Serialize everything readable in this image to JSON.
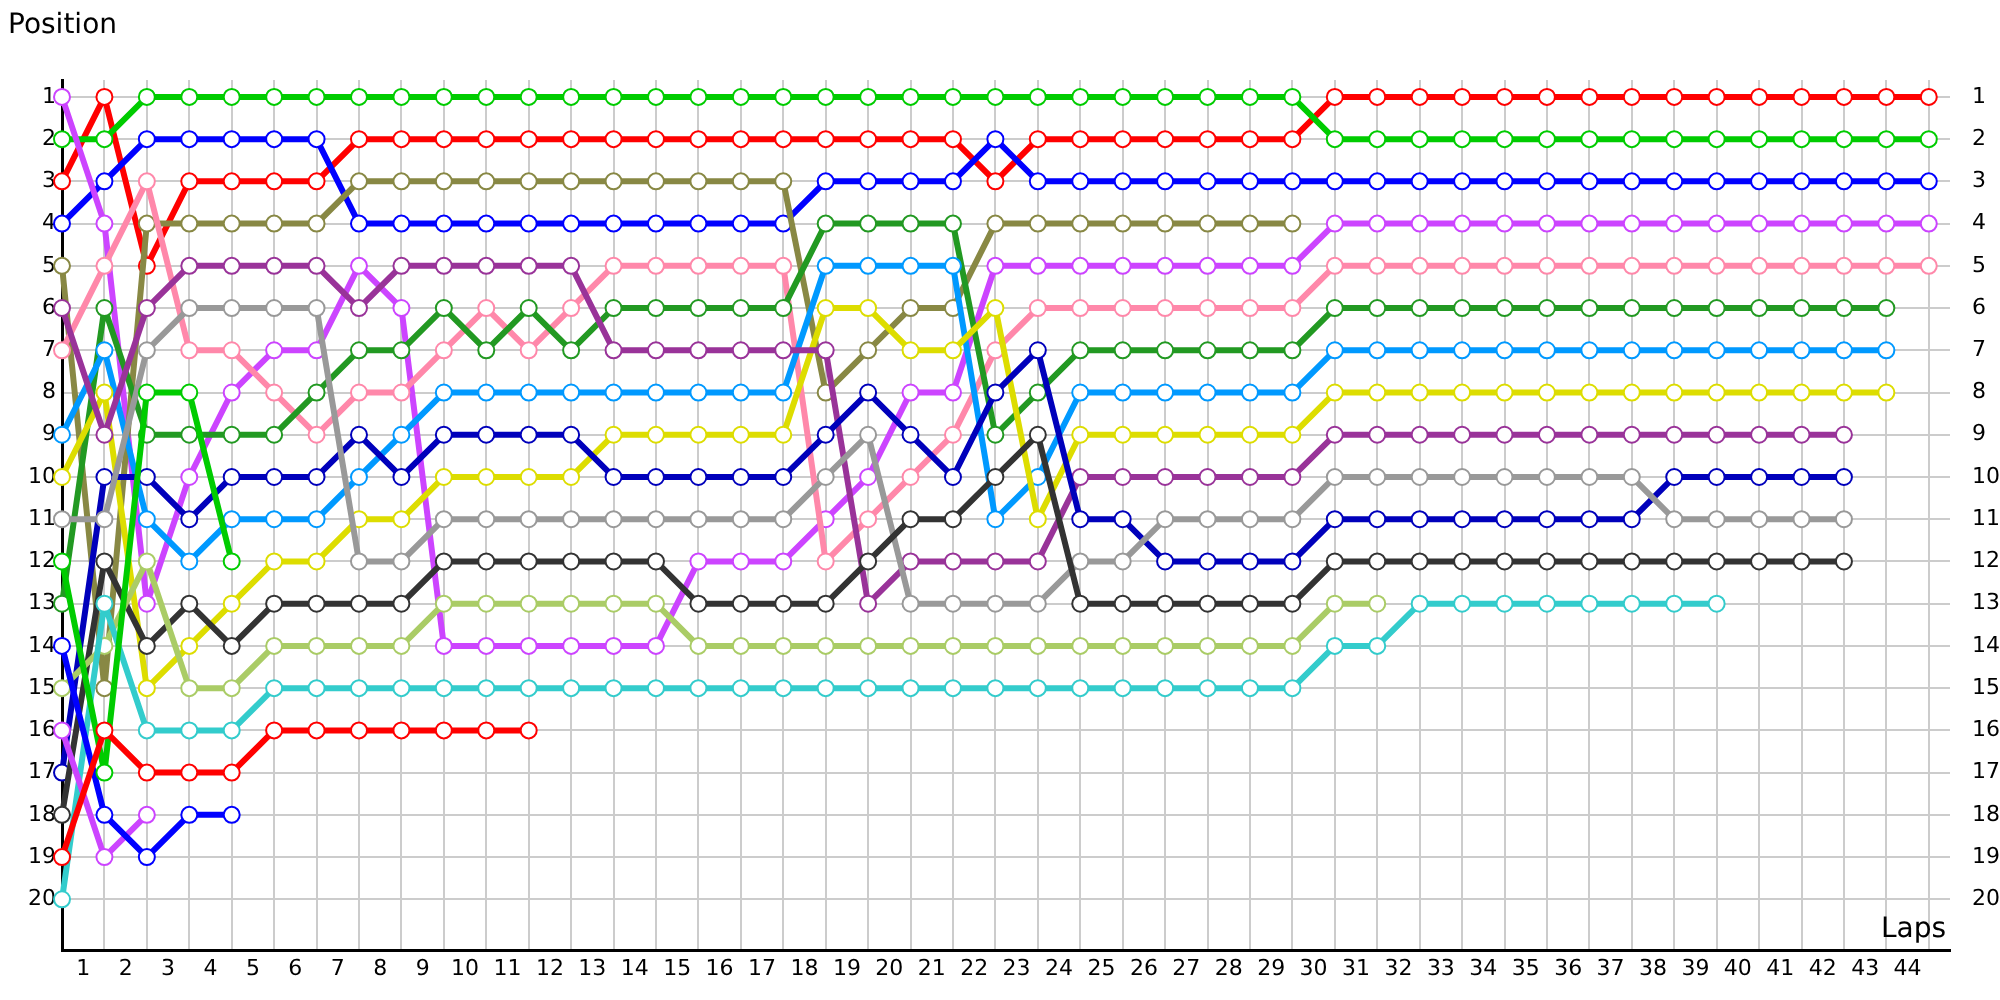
{
  "chart_data": {
    "type": "line",
    "xlabel": "Laps",
    "ylabel": "Position",
    "x": [
      0,
      1,
      2,
      3,
      4,
      5,
      6,
      7,
      8,
      9,
      10,
      11,
      12,
      13,
      14,
      15,
      16,
      17,
      18,
      19,
      20,
      21,
      22,
      23,
      24,
      25,
      26,
      27,
      28,
      29,
      30,
      31,
      32,
      33,
      34,
      35,
      36,
      37,
      38,
      39,
      40,
      41,
      42,
      43,
      44
    ],
    "series": [
      {
        "color": "#ff0000",
        "values": [
          19,
          16,
          17,
          17,
          17,
          16,
          16,
          16,
          16,
          16,
          16,
          16,
          null,
          null,
          null,
          null,
          null,
          null,
          null,
          null,
          null,
          null,
          null,
          null,
          null,
          null,
          null,
          null,
          null,
          null,
          null,
          null,
          null,
          null,
          null,
          null,
          null,
          null,
          null,
          null,
          null,
          null,
          null,
          null,
          null
        ]
      },
      {
        "color": "#00cc00",
        "values": [
          12,
          17,
          8,
          8,
          12,
          null,
          null,
          null,
          null,
          null,
          null,
          null,
          null,
          null,
          null,
          null,
          null,
          null,
          null,
          null,
          null,
          null,
          null,
          null,
          null,
          null,
          null,
          null,
          null,
          null,
          null,
          null,
          null,
          null,
          null,
          null,
          null,
          null,
          null,
          null,
          null,
          null,
          null,
          null,
          null
        ]
      },
      {
        "color": "#0000ff",
        "values": [
          14,
          18,
          19,
          18,
          18,
          null,
          null,
          null,
          null,
          null,
          null,
          null,
          null,
          null,
          null,
          null,
          null,
          null,
          null,
          null,
          null,
          null,
          null,
          null,
          null,
          null,
          null,
          null,
          null,
          null,
          null,
          null,
          null,
          null,
          null,
          null,
          null,
          null,
          null,
          null,
          null,
          null,
          null,
          null,
          null
        ]
      },
      {
        "color": "#cc44ff",
        "values": [
          16,
          19,
          18,
          null,
          null,
          null,
          null,
          null,
          null,
          null,
          null,
          null,
          null,
          null,
          null,
          null,
          null,
          null,
          null,
          null,
          null,
          null,
          null,
          null,
          null,
          null,
          null,
          null,
          null,
          null,
          null,
          null,
          null,
          null,
          null,
          null,
          null,
          null,
          null,
          null,
          null,
          null,
          null,
          null,
          null
        ]
      },
      {
        "color": "#33cccc",
        "values": [
          20,
          13,
          16,
          16,
          16,
          15,
          15,
          15,
          15,
          15,
          15,
          15,
          15,
          15,
          15,
          15,
          15,
          15,
          15,
          15,
          15,
          15,
          15,
          15,
          15,
          15,
          15,
          15,
          15,
          15,
          14,
          14,
          13,
          13,
          13,
          13,
          13,
          13,
          13,
          13,
          null,
          null,
          null,
          null,
          null
        ]
      },
      {
        "color": "#aacc66",
        "values": [
          15,
          14,
          12,
          15,
          15,
          14,
          14,
          14,
          14,
          13,
          13,
          13,
          13,
          13,
          13,
          14,
          14,
          14,
          14,
          14,
          14,
          14,
          14,
          14,
          14,
          14,
          14,
          14,
          14,
          14,
          13,
          13,
          null,
          null,
          null,
          null,
          null,
          null,
          null,
          null,
          null,
          null,
          null,
          null,
          null
        ]
      },
      {
        "color": "#333333",
        "values": [
          18,
          12,
          14,
          13,
          14,
          13,
          13,
          13,
          13,
          12,
          12,
          12,
          12,
          12,
          12,
          13,
          13,
          13,
          13,
          12,
          11,
          11,
          10,
          9,
          13,
          13,
          13,
          13,
          13,
          13,
          12,
          12,
          12,
          12,
          12,
          12,
          12,
          12,
          12,
          12,
          12,
          12,
          12,
          null,
          null
        ]
      },
      {
        "color": "#999999",
        "values": [
          11,
          11,
          7,
          6,
          6,
          6,
          6,
          12,
          12,
          11,
          11,
          11,
          11,
          11,
          11,
          11,
          11,
          11,
          10,
          9,
          13,
          13,
          13,
          13,
          12,
          12,
          11,
          11,
          11,
          11,
          10,
          10,
          10,
          10,
          10,
          10,
          10,
          10,
          11,
          11,
          11,
          11,
          11,
          null,
          null
        ]
      },
      {
        "color": "#0000bb",
        "values": [
          17,
          10,
          10,
          11,
          10,
          10,
          10,
          9,
          10,
          9,
          9,
          9,
          9,
          10,
          10,
          10,
          10,
          10,
          9,
          8,
          9,
          10,
          8,
          7,
          11,
          11,
          12,
          12,
          12,
          12,
          11,
          11,
          11,
          11,
          11,
          11,
          11,
          11,
          10,
          10,
          10,
          10,
          10,
          null,
          null
        ]
      },
      {
        "color": "#993399",
        "values": [
          6,
          9,
          6,
          5,
          5,
          5,
          5,
          6,
          5,
          5,
          5,
          5,
          5,
          7,
          7,
          7,
          7,
          7,
          7,
          13,
          12,
          12,
          12,
          12,
          10,
          10,
          10,
          10,
          10,
          10,
          9,
          9,
          9,
          9,
          9,
          9,
          9,
          9,
          9,
          9,
          9,
          9,
          9,
          null,
          null
        ]
      },
      {
        "color": "#dddd00",
        "values": [
          10,
          8,
          15,
          14,
          13,
          12,
          12,
          11,
          11,
          10,
          10,
          10,
          10,
          9,
          9,
          9,
          9,
          9,
          6,
          6,
          7,
          7,
          6,
          11,
          9,
          9,
          9,
          9,
          9,
          9,
          8,
          8,
          8,
          8,
          8,
          8,
          8,
          8,
          8,
          8,
          8,
          8,
          8,
          8,
          null
        ]
      },
      {
        "color": "#0099ff",
        "values": [
          9,
          7,
          11,
          12,
          11,
          11,
          11,
          10,
          9,
          8,
          8,
          8,
          8,
          8,
          8,
          8,
          8,
          8,
          5,
          5,
          5,
          5,
          11,
          10,
          8,
          8,
          8,
          8,
          8,
          8,
          7,
          7,
          7,
          7,
          7,
          7,
          7,
          7,
          7,
          7,
          7,
          7,
          7,
          7,
          null
        ]
      },
      {
        "color": "#229922",
        "values": [
          13,
          6,
          9,
          9,
          9,
          9,
          8,
          7,
          7,
          6,
          7,
          6,
          7,
          6,
          6,
          6,
          6,
          6,
          4,
          4,
          4,
          4,
          9,
          8,
          7,
          7,
          7,
          7,
          7,
          7,
          6,
          6,
          6,
          6,
          6,
          6,
          6,
          6,
          6,
          6,
          6,
          6,
          6,
          6,
          null
        ]
      },
      {
        "color": "#ff88aa",
        "values": [
          7,
          5,
          3,
          7,
          7,
          8,
          9,
          8,
          8,
          7,
          6,
          7,
          6,
          5,
          5,
          5,
          5,
          5,
          12,
          11,
          10,
          9,
          7,
          6,
          6,
          6,
          6,
          6,
          6,
          6,
          5,
          5,
          5,
          5,
          5,
          5,
          5,
          5,
          5,
          5,
          5,
          5,
          5,
          5,
          5
        ]
      },
      {
        "color": "#888844",
        "values": [
          5,
          15,
          4,
          4,
          4,
          4,
          4,
          3,
          3,
          3,
          3,
          3,
          3,
          3,
          3,
          3,
          3,
          3,
          8,
          7,
          6,
          6,
          4,
          4,
          4,
          4,
          4,
          4,
          4,
          4,
          null,
          null,
          null,
          null,
          null,
          null,
          null,
          null,
          null,
          null,
          null,
          null,
          null,
          null,
          null
        ]
      },
      {
        "color": "#cc44ff",
        "values": [
          1,
          4,
          13,
          10,
          8,
          7,
          7,
          5,
          6,
          14,
          14,
          14,
          14,
          14,
          14,
          12,
          12,
          12,
          11,
          10,
          8,
          8,
          5,
          5,
          5,
          5,
          5,
          5,
          5,
          5,
          4,
          4,
          4,
          4,
          4,
          4,
          4,
          4,
          4,
          4,
          4,
          4,
          4,
          4,
          4
        ]
      },
      {
        "color": "#0000ff",
        "values": [
          4,
          3,
          2,
          2,
          2,
          2,
          2,
          4,
          4,
          4,
          4,
          4,
          4,
          4,
          4,
          4,
          4,
          4,
          3,
          3,
          3,
          3,
          2,
          3,
          3,
          3,
          3,
          3,
          3,
          3,
          3,
          3,
          3,
          3,
          3,
          3,
          3,
          3,
          3,
          3,
          3,
          3,
          3,
          3,
          3
        ]
      },
      {
        "color": "#00cc00",
        "values": [
          2,
          2,
          1,
          1,
          1,
          1,
          1,
          1,
          1,
          1,
          1,
          1,
          1,
          1,
          1,
          1,
          1,
          1,
          1,
          1,
          1,
          1,
          1,
          1,
          1,
          1,
          1,
          1,
          1,
          1,
          2,
          2,
          2,
          2,
          2,
          2,
          2,
          2,
          2,
          2,
          2,
          2,
          2,
          2,
          2
        ]
      },
      {
        "color": "#ff0000",
        "values": [
          3,
          1,
          5,
          3,
          3,
          3,
          3,
          2,
          2,
          2,
          2,
          2,
          2,
          2,
          2,
          2,
          2,
          2,
          2,
          2,
          2,
          2,
          3,
          2,
          2,
          2,
          2,
          2,
          2,
          2,
          1,
          1,
          1,
          1,
          1,
          1,
          1,
          1,
          1,
          1,
          1,
          1,
          1,
          1,
          1
        ]
      }
    ],
    "xlim": [
      0,
      44.5
    ],
    "xticks": [
      {
        "value": 0,
        "label": null
      },
      {
        "value": 0.5,
        "label": "1"
      },
      {
        "value": 1,
        "label": null
      },
      {
        "value": 1.5,
        "label": "2"
      },
      {
        "value": 2,
        "label": null
      },
      {
        "value": 2.5,
        "label": "3"
      },
      {
        "value": 3,
        "label": null
      },
      {
        "value": 3.5,
        "label": "4"
      },
      {
        "value": 4,
        "label": null
      },
      {
        "value": 4.5,
        "label": "5"
      },
      {
        "value": 5,
        "label": null
      },
      {
        "value": 5.5,
        "label": "6"
      },
      {
        "value": 6,
        "label": null
      },
      {
        "value": 6.5,
        "label": "7"
      },
      {
        "value": 7,
        "label": null
      },
      {
        "value": 7.5,
        "label": "8"
      },
      {
        "value": 8,
        "label": null
      },
      {
        "value": 8.5,
        "label": "9"
      },
      {
        "value": 9,
        "label": null
      },
      {
        "value": 9.5,
        "label": "10"
      },
      {
        "value": 10,
        "label": null
      },
      {
        "value": 10.5,
        "label": "11"
      },
      {
        "value": 11,
        "label": null
      },
      {
        "value": 11.5,
        "label": "12"
      },
      {
        "value": 12,
        "label": null
      },
      {
        "value": 12.5,
        "label": "13"
      },
      {
        "value": 13,
        "label": null
      },
      {
        "value": 13.5,
        "label": "14"
      },
      {
        "value": 14,
        "label": null
      },
      {
        "value": 14.5,
        "label": "15"
      },
      {
        "value": 15,
        "label": null
      },
      {
        "value": 15.5,
        "label": "16"
      },
      {
        "value": 16,
        "label": null
      },
      {
        "value": 16.5,
        "label": "17"
      },
      {
        "value": 17,
        "label": null
      },
      {
        "value": 17.5,
        "label": "18"
      },
      {
        "value": 18,
        "label": null
      },
      {
        "value": 18.5,
        "label": "19"
      },
      {
        "value": 19,
        "label": null
      },
      {
        "value": 19.5,
        "label": "20"
      },
      {
        "value": 20,
        "label": null
      },
      {
        "value": 20.5,
        "label": "21"
      },
      {
        "value": 21,
        "label": null
      },
      {
        "value": 21.5,
        "label": "22"
      },
      {
        "value": 22,
        "label": null
      },
      {
        "value": 22.5,
        "label": "23"
      },
      {
        "value": 23,
        "label": null
      },
      {
        "value": 23.5,
        "label": "24"
      },
      {
        "value": 24,
        "label": null
      },
      {
        "value": 24.5,
        "label": "25"
      },
      {
        "value": 25,
        "label": null
      },
      {
        "value": 25.5,
        "label": "26"
      },
      {
        "value": 26,
        "label": null
      },
      {
        "value": 26.5,
        "label": "27"
      },
      {
        "value": 27,
        "label": null
      },
      {
        "value": 27.5,
        "label": "28"
      },
      {
        "value": 28,
        "label": null
      },
      {
        "value": 28.5,
        "label": "29"
      },
      {
        "value": 29,
        "label": null
      },
      {
        "value": 29.5,
        "label": "30"
      },
      {
        "value": 30,
        "label": null
      },
      {
        "value": 30.5,
        "label": "31"
      },
      {
        "value": 31,
        "label": null
      },
      {
        "value": 31.5,
        "label": "32"
      },
      {
        "value": 32,
        "label": null
      },
      {
        "value": 32.5,
        "label": "33"
      },
      {
        "value": 33,
        "label": null
      },
      {
        "value": 33.5,
        "label": "34"
      },
      {
        "value": 34,
        "label": null
      },
      {
        "value": 34.5,
        "label": "35"
      },
      {
        "value": 35,
        "label": null
      },
      {
        "value": 35.5,
        "label": "36"
      },
      {
        "value": 36,
        "label": null
      },
      {
        "value": 36.5,
        "label": "37"
      },
      {
        "value": 37,
        "label": null
      },
      {
        "value": 37.5,
        "label": "38"
      },
      {
        "value": 38,
        "label": null
      },
      {
        "value": 38.5,
        "label": "39"
      },
      {
        "value": 39,
        "label": null
      },
      {
        "value": 39.5,
        "label": "40"
      },
      {
        "value": 40,
        "label": null
      },
      {
        "value": 40.5,
        "label": "41"
      },
      {
        "value": 41,
        "label": null
      },
      {
        "value": 41.5,
        "label": "42"
      },
      {
        "value": 42,
        "label": null
      },
      {
        "value": 42.5,
        "label": "43"
      },
      {
        "value": 43,
        "label": null
      },
      {
        "value": 43.5,
        "label": "44"
      },
      {
        "value": 44,
        "label": null
      }
    ],
    "ylim": [
      21.2,
      0.6
    ],
    "yticks": [
      1,
      2,
      3,
      4,
      5,
      6,
      7,
      8,
      9,
      10,
      11,
      12,
      13,
      14,
      15,
      16,
      17,
      18,
      19,
      20
    ],
    "y2lim": [
      21.2,
      0.6
    ],
    "y2ticks": [
      1,
      2,
      3,
      4,
      5,
      6,
      7,
      8,
      9,
      10,
      11,
      12,
      13,
      14,
      15,
      16,
      17,
      18,
      19,
      20
    ],
    "grid": true,
    "legend": false,
    "marker": "circle",
    "line_style": "solid"
  }
}
